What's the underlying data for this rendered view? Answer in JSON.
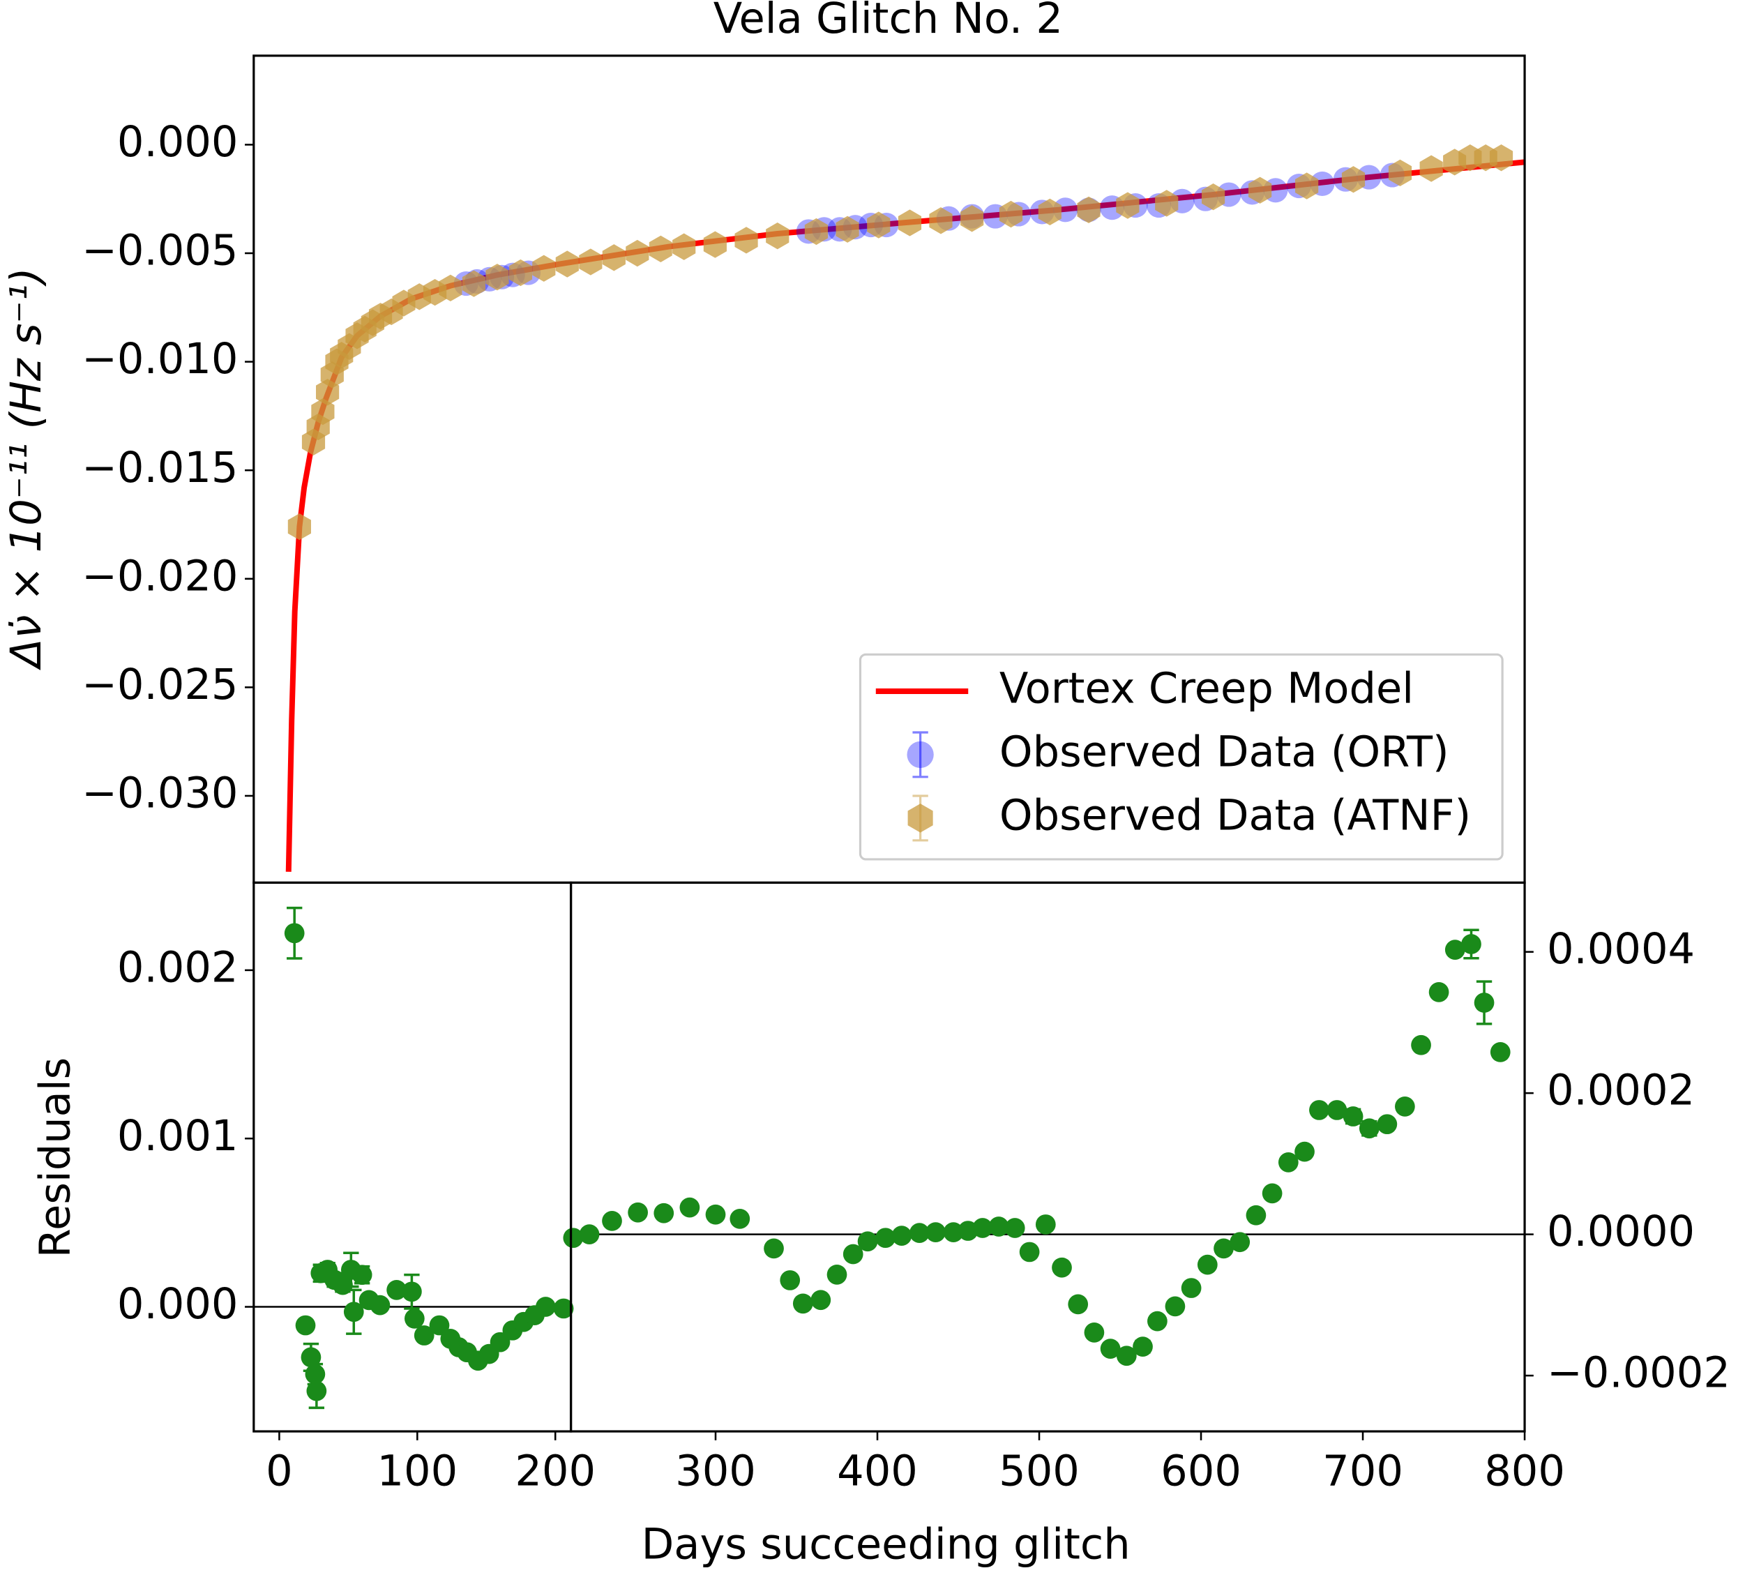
{
  "chart_data": [
    {
      "type": "line",
      "title": "Vela Glitch No. 2",
      "ylabel": "Δν̇ × 10⁻¹¹ (Hz s⁻¹)",
      "xlim": [
        -16.4,
        800
      ],
      "ylim": [
        -0.034,
        0.0041
      ],
      "yticks": [
        {
          "value": 0,
          "label": "0.000"
        },
        {
          "value": -0.005,
          "label": "−0.005"
        },
        {
          "value": -0.01,
          "label": "−0.010"
        },
        {
          "value": -0.015,
          "label": "−0.015"
        },
        {
          "value": -0.02,
          "label": "−0.020"
        },
        {
          "value": -0.025,
          "label": "−0.025"
        },
        {
          "value": -0.03,
          "label": "−0.030"
        }
      ],
      "legend": "lower right",
      "series": [
        {
          "name": "Vortex Creep Model",
          "kind": "line",
          "color": "#ff0000",
          "x": [
            6,
            8,
            10,
            13,
            16,
            20,
            25,
            30,
            40,
            50,
            65,
            85,
            110,
            140,
            180,
            250,
            320,
            400,
            500,
            600,
            700,
            800
          ],
          "values": [
            -0.0335,
            -0.0265,
            -0.0215,
            -0.0176,
            -0.0158,
            -0.0142,
            -0.0128,
            -0.0117,
            -0.0098,
            -0.0088,
            -0.0079,
            -0.0071,
            -0.0065,
            -0.006,
            -0.0055,
            -0.0047,
            -0.0041,
            -0.0036,
            -0.003,
            -0.0023,
            -0.0015,
            -0.0008
          ]
        },
        {
          "name": "Observed Data (ORT)",
          "kind": "scatter",
          "marker": "circle",
          "color": "#0000ff",
          "x": [
            120,
            127,
            135,
            143,
            150,
            160,
            340,
            350,
            360,
            370,
            380,
            390,
            430,
            445,
            460,
            475,
            490,
            505,
            520,
            535,
            550,
            565,
            580,
            595,
            610,
            625,
            640,
            655,
            670,
            685,
            700,
            715
          ],
          "values": [
            -0.0064,
            -0.0063,
            -0.0062,
            -0.0061,
            -0.006,
            -0.0059,
            -0.004,
            -0.0039,
            -0.0039,
            -0.0038,
            -0.0037,
            -0.0037,
            -0.0034,
            -0.0033,
            -0.0033,
            -0.0032,
            -0.0031,
            -0.003,
            -0.003,
            -0.0029,
            -0.0028,
            -0.0028,
            -0.0026,
            -0.0025,
            -0.0023,
            -0.0022,
            -0.0021,
            -0.0019,
            -0.0018,
            -0.0016,
            -0.0015,
            -0.0014
          ]
        },
        {
          "name": "Observed Data (ATNF)",
          "kind": "scatter",
          "marker": "hexagon",
          "color": "#c89a3c",
          "x": [
            13,
            22,
            25,
            28,
            31,
            34,
            37,
            40,
            45,
            50,
            55,
            60,
            65,
            72,
            80,
            90,
            100,
            110,
            125,
            140,
            155,
            170,
            185,
            200,
            215,
            230,
            245,
            260,
            280,
            300,
            320,
            345,
            365,
            385,
            405,
            425,
            445,
            470,
            495,
            520,
            545,
            570,
            600,
            630,
            660,
            690,
            720,
            740,
            755,
            765,
            775,
            785
          ],
          "values": [
            -0.0176,
            -0.0137,
            -0.013,
            -0.0123,
            -0.0114,
            -0.0106,
            -0.01,
            -0.0097,
            -0.0093,
            -0.0088,
            -0.0085,
            -0.0082,
            -0.0079,
            -0.0077,
            -0.0073,
            -0.007,
            -0.0068,
            -0.0066,
            -0.0064,
            -0.0061,
            -0.0059,
            -0.0057,
            -0.0055,
            -0.0054,
            -0.0052,
            -0.005,
            -0.0048,
            -0.0047,
            -0.0046,
            -0.0044,
            -0.0042,
            -0.004,
            -0.0039,
            -0.0037,
            -0.0036,
            -0.0035,
            -0.0034,
            -0.0032,
            -0.0031,
            -0.003,
            -0.0028,
            -0.0027,
            -0.0024,
            -0.0021,
            -0.0019,
            -0.0016,
            -0.0013,
            -0.0011,
            -0.0008,
            -0.0006,
            -0.0006,
            -0.0006
          ]
        }
      ]
    },
    {
      "type": "scatter",
      "ylabel": "Residuals",
      "xlabel": "Days succeeding glitch",
      "xlim": [
        -18.5,
        211.3
      ],
      "ylim": [
        -0.00074,
        0.00252
      ],
      "xticks": [
        0,
        100,
        200
      ],
      "yticks": [
        {
          "value": 0,
          "label": "0.000"
        },
        {
          "value": 0.001,
          "label": "0.001"
        },
        {
          "value": 0.002,
          "label": "0.002"
        }
      ],
      "series": [
        {
          "color": "#1a8a1a",
          "x": [
            11,
            19,
            23,
            26,
            27,
            30,
            35,
            40,
            46,
            52,
            54,
            60,
            65,
            73,
            85,
            96,
            98,
            105,
            116,
            124,
            130,
            136,
            144,
            152,
            160,
            169,
            177,
            185,
            193,
            206
          ],
          "values": [
            0.00222,
            -0.00011,
            -0.0003,
            -0.0004,
            -0.0005,
            0.0002,
            0.00022,
            0.00016,
            0.00013,
            0.00022,
            -3e-05,
            0.00019,
            4e-05,
            1e-05,
            0.0001,
            9e-05,
            -7e-05,
            -0.00017,
            -0.00011,
            -0.00019,
            -0.00024,
            -0.00027,
            -0.00032,
            -0.00028,
            -0.00021,
            -0.00014,
            -9e-05,
            -5e-05,
            0,
            -1e-05
          ],
          "errors": [
            0.00015,
            3e-05,
            8e-05,
            6e-05,
            0.0001,
            5e-05,
            4e-05,
            4e-05,
            4e-05,
            0.0001,
            0.00013,
            5e-05,
            3e-05,
            3e-05,
            3e-05,
            0.0001,
            3e-05,
            3e-05,
            3e-05,
            3e-05,
            3e-05,
            3e-05,
            3e-05,
            3e-05,
            3e-05,
            3e-05,
            3e-05,
            3e-05,
            3e-05,
            3e-05
          ]
        }
      ]
    },
    {
      "type": "scatter",
      "xlim": [
        210.6,
        800
      ],
      "y2lim": [
        -0.000279,
        0.000498
      ],
      "xticks": [
        300,
        400,
        500,
        600,
        700,
        800
      ],
      "y2ticks": [
        {
          "value": -0.0002,
          "label": "−0.0002"
        },
        {
          "value": 0,
          "label": "0.0000"
        },
        {
          "value": 0.0002,
          "label": "0.0002"
        },
        {
          "value": 0.0004,
          "label": "0.0004"
        }
      ],
      "series": [
        {
          "color": "#1a8a1a",
          "axis": "y2",
          "x": [
            212,
            222,
            236,
            252,
            268,
            284,
            300,
            315,
            336,
            346,
            354,
            365,
            375,
            385,
            394,
            405,
            415,
            426,
            436,
            447,
            456,
            465,
            475,
            485,
            494,
            504,
            514,
            524,
            534,
            544,
            554,
            564,
            573,
            584,
            594,
            604,
            614,
            624,
            634,
            644,
            654,
            664,
            673,
            684,
            694,
            704,
            715,
            726,
            736,
            747,
            757,
            767,
            775,
            785
          ],
          "values": [
            -5e-06,
            0,
            1.9e-05,
            3.1e-05,
            3e-05,
            3.8e-05,
            2.8e-05,
            2.2e-05,
            -2e-05,
            -6.5e-05,
            -9.8e-05,
            -9.3e-05,
            -5.7e-05,
            -2.8e-05,
            -1e-05,
            -5e-06,
            -2e-06,
            2e-06,
            3e-06,
            3e-06,
            5e-06,
            9e-06,
            1.1e-05,
            9e-06,
            -2.5e-05,
            1.4e-05,
            -4.7e-05,
            -9.9e-05,
            -0.000139,
            -0.000162,
            -0.000172,
            -0.000159,
            -0.000123,
            -0.000102,
            -7.6e-05,
            -4.3e-05,
            -2e-05,
            -1.1e-05,
            2.7e-05,
            5.8e-05,
            0.000102,
            0.000117,
            0.000176,
            0.000176,
            0.000167,
            0.00015,
            0.000156,
            0.000181,
            0.000268,
            0.000343,
            0.000403,
            0.000411,
            0.000328,
            0.000258
          ],
          "errors": [
            6e-06,
            6e-06,
            6e-06,
            6e-06,
            6e-06,
            6e-06,
            6e-06,
            6e-06,
            6e-06,
            6e-06,
            6e-06,
            6e-06,
            6e-06,
            6e-06,
            6e-06,
            6e-06,
            6e-06,
            6e-06,
            6e-06,
            6e-06,
            6e-06,
            6e-06,
            6e-06,
            6e-06,
            6e-06,
            6e-06,
            6e-06,
            6e-06,
            6e-06,
            6e-06,
            6e-06,
            8e-06,
            6e-06,
            6e-06,
            6e-06,
            6e-06,
            6e-06,
            6e-06,
            6e-06,
            6e-06,
            6e-06,
            6e-06,
            6e-06,
            6e-06,
            1e-05,
            1e-05,
            6e-06,
            6e-06,
            6e-06,
            6e-06,
            6e-06,
            2e-05,
            3e-05,
            6e-06
          ]
        }
      ]
    }
  ]
}
